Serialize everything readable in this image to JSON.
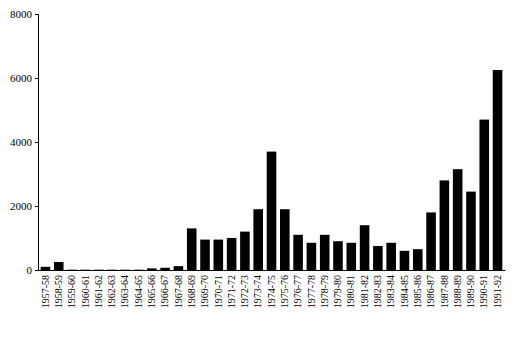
{
  "chart_data": {
    "type": "bar",
    "categories": [
      "1957-58",
      "1958-59",
      "1959-60",
      "1960-61",
      "1961-62",
      "1962-63",
      "1963-64",
      "1964-65",
      "1965-66",
      "1966-67",
      "1967-68",
      "1968-69",
      "1969-70",
      "1970-71",
      "1971-72",
      "1972-73",
      "1973-74",
      "1974-75",
      "1975-76",
      "1976-77",
      "1977-78",
      "1978-79",
      "1979-80",
      "1980-81",
      "1981-82",
      "1982-83",
      "1983-84",
      "1984-85",
      "1985-86",
      "1986-87",
      "1987-88",
      "1988-89",
      "1989-90",
      "1990-91",
      "1991-92"
    ],
    "values": [
      100,
      250,
      10,
      10,
      10,
      10,
      10,
      10,
      50,
      70,
      120,
      1300,
      950,
      950,
      1000,
      1200,
      1900,
      3700,
      1900,
      1100,
      850,
      1100,
      900,
      850,
      1400,
      750,
      850,
      600,
      650,
      1800,
      2800,
      3150,
      2450,
      4700,
      6250
    ],
    "color": "#000000",
    "ylim": [
      0,
      8000
    ],
    "yticks": [
      0,
      2000,
      4000,
      6000,
      8000
    ],
    "grid": false
  }
}
